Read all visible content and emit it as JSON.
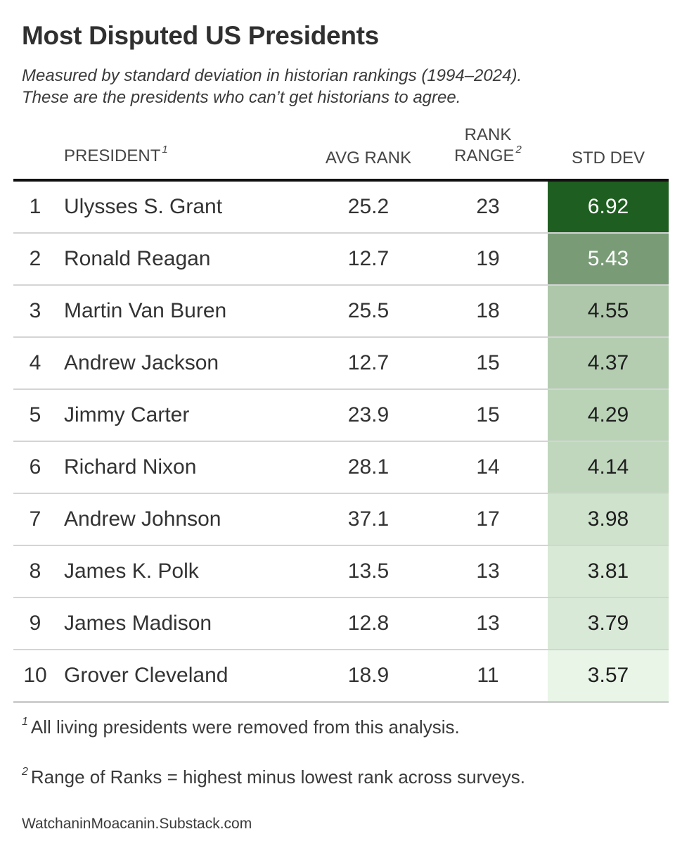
{
  "title": "Most Disputed US Presidents",
  "subtitle": {
    "line1": "Measured by standard deviation in historian rankings (1994–2024).",
    "line2": "These are the presidents who can’t get historians to agree."
  },
  "columns": {
    "president": "PRESIDENT",
    "president_note": "1",
    "avg_rank": "AVG RANK",
    "rank_range_line1": "RANK",
    "rank_range_line2": "RANGE",
    "rank_range_note": "2",
    "std_dev": "STD DEV"
  },
  "chart_data": {
    "type": "table",
    "title": "Most Disputed US Presidents",
    "columns": [
      "",
      "PRESIDENT",
      "AVG RANK",
      "RANK RANGE",
      "STD DEV"
    ],
    "rows": [
      {
        "rank": "1",
        "president": "Ulysses S. Grant",
        "avg_rank": "25.2",
        "rank_range": "23",
        "std_dev": "6.92"
      },
      {
        "rank": "2",
        "president": "Ronald Reagan",
        "avg_rank": "12.7",
        "rank_range": "19",
        "std_dev": "5.43"
      },
      {
        "rank": "3",
        "president": "Martin Van Buren",
        "avg_rank": "25.5",
        "rank_range": "18",
        "std_dev": "4.55"
      },
      {
        "rank": "4",
        "president": "Andrew Jackson",
        "avg_rank": "12.7",
        "rank_range": "15",
        "std_dev": "4.37"
      },
      {
        "rank": "5",
        "president": "Jimmy Carter",
        "avg_rank": "23.9",
        "rank_range": "15",
        "std_dev": "4.29"
      },
      {
        "rank": "6",
        "president": "Richard Nixon",
        "avg_rank": "28.1",
        "rank_range": "14",
        "std_dev": "4.14"
      },
      {
        "rank": "7",
        "president": "Andrew Johnson",
        "avg_rank": "37.1",
        "rank_range": "17",
        "std_dev": "3.98"
      },
      {
        "rank": "8",
        "president": "James K. Polk",
        "avg_rank": "13.5",
        "rank_range": "13",
        "std_dev": "3.81"
      },
      {
        "rank": "9",
        "president": "James Madison",
        "avg_rank": "12.8",
        "rank_range": "13",
        "std_dev": "3.79"
      },
      {
        "rank": "10",
        "president": "Grover Cleveland",
        "avg_rank": "18.9",
        "rank_range": "11",
        "std_dev": "3.57"
      }
    ],
    "std_dev_colors": {
      "6.92": "#1e5e20",
      "5.43": "#799c77",
      "4.55": "#aec7aa",
      "4.37": "#b4cdb1",
      "4.29": "#bad3b7",
      "4.14": "#c0d7bd",
      "3.98": "#cee2cc",
      "3.81": "#d8e9d6",
      "3.79": "#d9e9d7",
      "3.57": "#e8f5e7"
    },
    "light_text_values": [
      "6.92",
      "5.43"
    ]
  },
  "footnotes": {
    "note1_mark": "1",
    "note1_text": "All living presidents were removed from this analysis.",
    "note2_mark": "2",
    "note2_text": "Range of Ranks = highest minus lowest rank across surveys."
  },
  "source": "WatchaninMoacanin.Substack.com"
}
